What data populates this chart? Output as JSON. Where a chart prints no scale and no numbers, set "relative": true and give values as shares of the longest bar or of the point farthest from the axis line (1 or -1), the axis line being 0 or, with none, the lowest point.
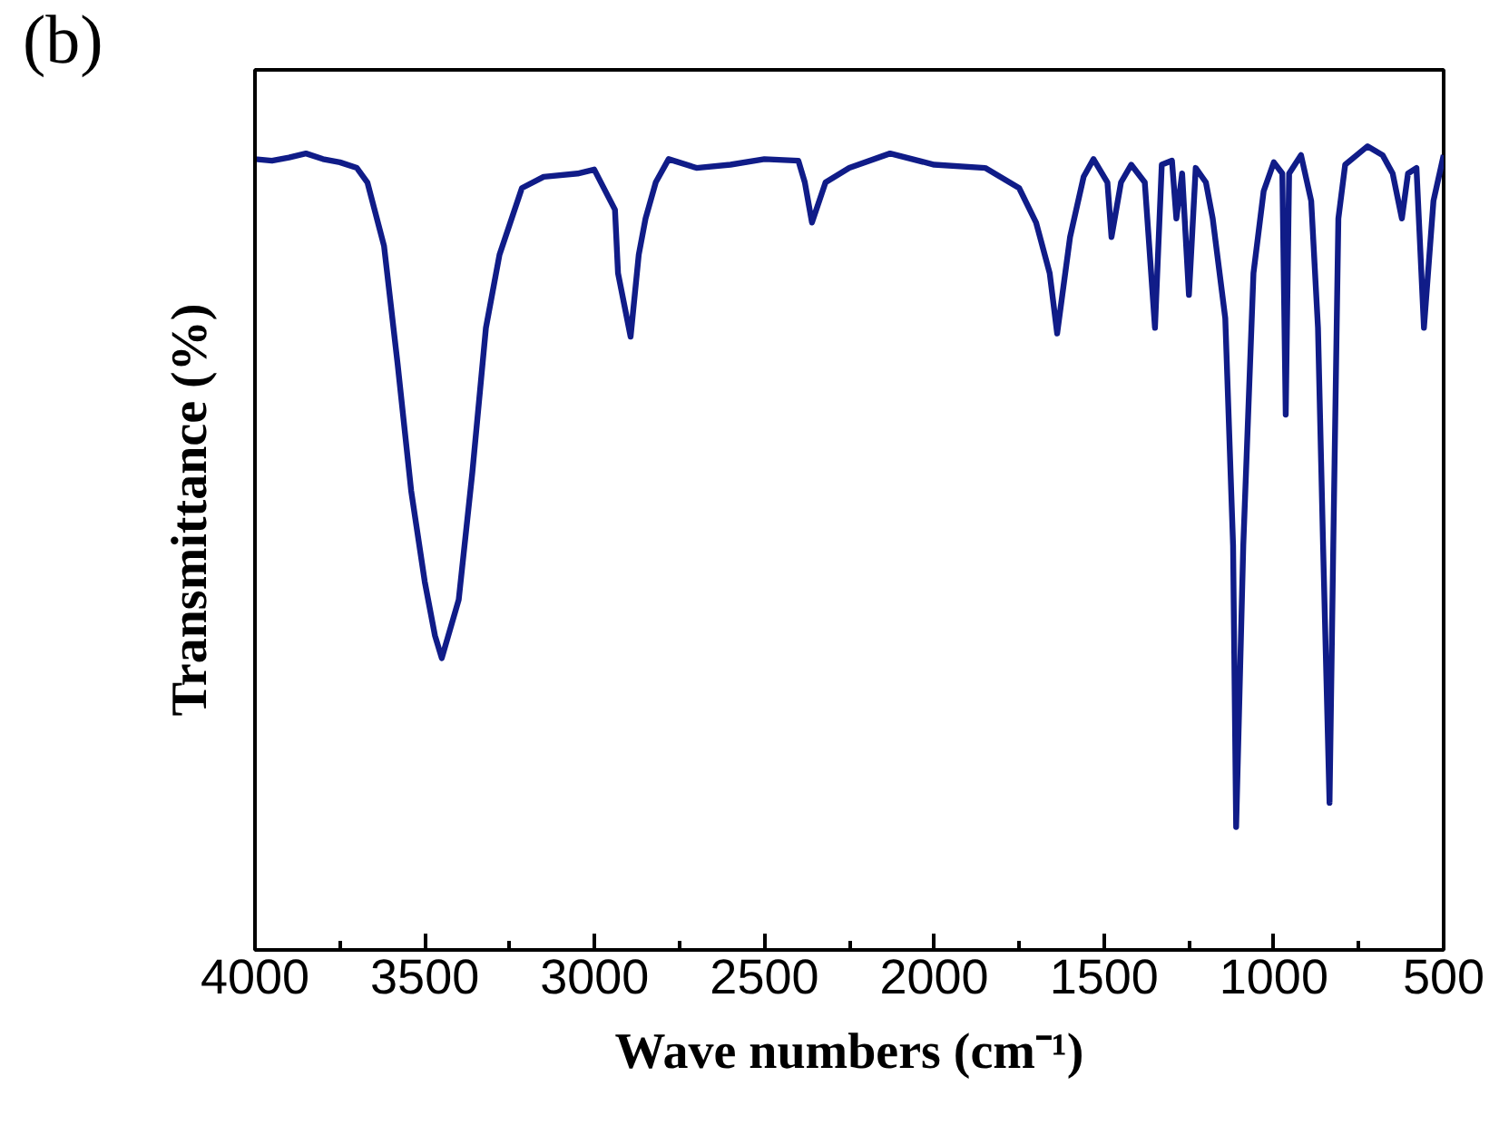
{
  "chart_data": {
    "type": "line",
    "title": "(b)",
    "xlabel": "Wave numbers (cm⁻¹)",
    "ylabel": "Transmittance (%)",
    "relative": true,
    "xlim": [
      4000,
      500
    ],
    "xticks": [
      4000,
      {
        "value": 3750,
        "label": null
      },
      3500,
      {
        "value": 3250,
        "label": null
      },
      3000,
      {
        "value": 2750,
        "label": null
      },
      2500,
      {
        "value": 2250,
        "label": null
      },
      2000,
      {
        "value": 1750,
        "label": null
      },
      1500,
      {
        "value": 1250,
        "label": null
      },
      1000,
      {
        "value": 750,
        "label": null
      },
      500
    ],
    "tick_labels": "x",
    "grid": false,
    "marker": "none",
    "line_style": "solid",
    "x": [
      4000,
      3950,
      3900,
      3850,
      3800,
      3750,
      3700,
      3669,
      3620,
      3580,
      3540,
      3500,
      3470,
      3450,
      3400,
      3360,
      3320,
      3280,
      3214,
      3150,
      3050,
      3001,
      2940,
      2931,
      2894,
      2870,
      2850,
      2820,
      2782,
      2700,
      2600,
      2500,
      2400,
      2381,
      2360,
      2320,
      2250,
      2130,
      2000,
      1850,
      1750,
      1700,
      1660,
      1638,
      1600,
      1560,
      1531,
      1490,
      1478,
      1450,
      1420,
      1380,
      1350,
      1330,
      1300,
      1287,
      1270,
      1250,
      1230,
      1200,
      1180,
      1143,
      1120,
      1111,
      1090,
      1060,
      1030,
      1000,
      975,
      965,
      955,
      920,
      890,
      870,
      855,
      836,
      825,
      810,
      790,
      724,
      680,
      650,
      623,
      605,
      580,
      558,
      530,
      500
    ],
    "series": [
      {
        "color": "#101c88",
        "values": [
          0.984,
          0.982,
          0.986,
          0.991,
          0.984,
          0.98,
          0.973,
          0.955,
          0.876,
          0.729,
          0.571,
          0.458,
          0.391,
          0.363,
          0.436,
          0.594,
          0.774,
          0.865,
          0.948,
          0.962,
          0.966,
          0.971,
          0.921,
          0.842,
          0.763,
          0.865,
          0.91,
          0.955,
          0.984,
          0.973,
          0.977,
          0.984,
          0.982,
          0.955,
          0.905,
          0.955,
          0.973,
          0.991,
          0.977,
          0.973,
          0.948,
          0.905,
          0.842,
          0.767,
          0.887,
          0.962,
          0.984,
          0.955,
          0.887,
          0.955,
          0.977,
          0.955,
          0.774,
          0.977,
          0.982,
          0.91,
          0.966,
          0.815,
          0.973,
          0.955,
          0.91,
          0.786,
          0.503,
          0.153,
          0.503,
          0.842,
          0.944,
          0.98,
          0.966,
          0.666,
          0.966,
          0.989,
          0.932,
          0.774,
          0.503,
          0.183,
          0.503,
          0.91,
          0.977,
          1.0,
          0.989,
          0.966,
          0.91,
          0.966,
          0.973,
          0.774,
          0.932,
          0.989
        ]
      }
    ]
  }
}
